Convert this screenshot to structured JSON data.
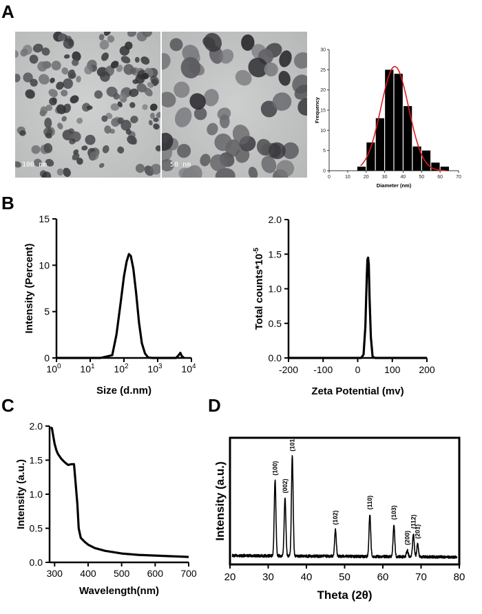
{
  "panels": {
    "a": "A",
    "b": "B",
    "c": "C",
    "d": "D"
  },
  "tem": {
    "scale1": "100 nm",
    "scale2": "50 nm"
  },
  "chart_data": [
    {
      "id": "hist",
      "type": "bar",
      "xlabel": "Diameter (nm)",
      "ylabel": "Frequency",
      "xlim": [
        0,
        70
      ],
      "ylim": [
        0,
        30
      ],
      "xticks": [
        0,
        10,
        20,
        30,
        40,
        50,
        60,
        70
      ],
      "yticks": [
        0,
        5,
        10,
        15,
        20,
        25,
        30
      ],
      "bin_width": 5,
      "bin_centers": [
        17.5,
        22.5,
        27.5,
        32.5,
        37.5,
        42.5,
        47.5,
        52.5,
        57.5,
        62.5
      ],
      "values": [
        1,
        7,
        13,
        25,
        24,
        16,
        6,
        5,
        2,
        1
      ],
      "fit": {
        "type": "gaussian",
        "amplitude": 25.8,
        "mean": 35.5,
        "sigma": 7.5,
        "x_range": [
          17,
          63
        ],
        "color": "#e0191e"
      }
    },
    {
      "id": "dls",
      "type": "line",
      "xlabel": "Size (d.nm)",
      "ylabel": "Intensity (Percent)",
      "xscale": "log",
      "xlim": [
        1,
        10000
      ],
      "ylim": [
        0,
        15
      ],
      "xtick_bases": [
        "10",
        "10",
        "10",
        "10",
        "10"
      ],
      "xtick_exps": [
        "0",
        "1",
        "2",
        "3",
        "4"
      ],
      "yticks": [
        0,
        5,
        10,
        15
      ],
      "x": [
        1,
        20,
        45,
        60,
        80,
        100,
        120,
        140,
        160,
        190,
        230,
        280,
        340,
        420,
        520,
        700,
        1000,
        2000,
        3500,
        4200,
        4700,
        5200,
        6000
      ],
      "y": [
        0,
        0,
        0.3,
        2.5,
        6.0,
        8.8,
        10.4,
        11.2,
        11.0,
        9.6,
        7.0,
        3.8,
        1.6,
        0.5,
        0.05,
        0,
        0,
        0,
        0,
        0.3,
        0.55,
        0.2,
        0
      ]
    },
    {
      "id": "zeta",
      "type": "line",
      "xlabel": "Zeta Potential (mv)",
      "ylabel_main": "Total counts*10",
      "ylabel_exp": "-5",
      "xlim": [
        -200,
        200
      ],
      "ylim": [
        0,
        2.0
      ],
      "xticks": [
        -200,
        -100,
        0,
        100,
        200
      ],
      "yticks": [
        "0.0",
        "0.5",
        "1.0",
        "1.5",
        "2.0"
      ],
      "x": [
        -200,
        10,
        17,
        22,
        26,
        28,
        30,
        32,
        34,
        38,
        43,
        50,
        200
      ],
      "y": [
        0,
        0,
        0.05,
        0.45,
        1.15,
        1.42,
        1.45,
        1.35,
        0.9,
        0.3,
        0.02,
        0,
        0
      ]
    },
    {
      "id": "uv",
      "type": "line",
      "xlabel": "Wavelength(nm)",
      "ylabel": "Intensity (a.u.)",
      "xlim": [
        285,
        700
      ],
      "ylim": [
        0,
        2.0
      ],
      "xticks": [
        300,
        400,
        500,
        600,
        700
      ],
      "yticks": [
        "0.0",
        "0.5",
        "1.0",
        "1.5",
        "2.0"
      ],
      "x": [
        288,
        292,
        296,
        300,
        305,
        310,
        320,
        330,
        340,
        350,
        358,
        362,
        368,
        372,
        378,
        390,
        400,
        420,
        450,
        500,
        550,
        600,
        650,
        700
      ],
      "y": [
        1.98,
        1.97,
        1.85,
        1.74,
        1.65,
        1.59,
        1.52,
        1.47,
        1.43,
        1.44,
        1.44,
        1.2,
        0.85,
        0.5,
        0.36,
        0.3,
        0.26,
        0.21,
        0.17,
        0.13,
        0.11,
        0.1,
        0.09,
        0.08
      ],
      "show_grid": false
    },
    {
      "id": "xrd",
      "type": "line",
      "xlabel": "Theta (2θ)",
      "ylabel": "Intensity (a.u.)",
      "xlim": [
        20,
        80
      ],
      "ylim": [
        0,
        100
      ],
      "xticks": [
        20,
        30,
        40,
        50,
        60,
        70,
        80
      ],
      "baseline": 7,
      "peaks": [
        {
          "pos": 31.8,
          "height": 60,
          "label": "(100)"
        },
        {
          "pos": 34.4,
          "height": 46,
          "label": "(002)"
        },
        {
          "pos": 36.3,
          "height": 79,
          "label": "(101)"
        },
        {
          "pos": 47.6,
          "height": 21,
          "label": "(102)"
        },
        {
          "pos": 56.6,
          "height": 33,
          "label": "(110)"
        },
        {
          "pos": 62.9,
          "height": 25,
          "label": "(103)"
        },
        {
          "pos": 66.4,
          "height": 5,
          "label": "(200)"
        },
        {
          "pos": 68.0,
          "height": 18,
          "label": "(112)"
        },
        {
          "pos": 69.1,
          "height": 10,
          "label": "(201)"
        }
      ]
    }
  ]
}
